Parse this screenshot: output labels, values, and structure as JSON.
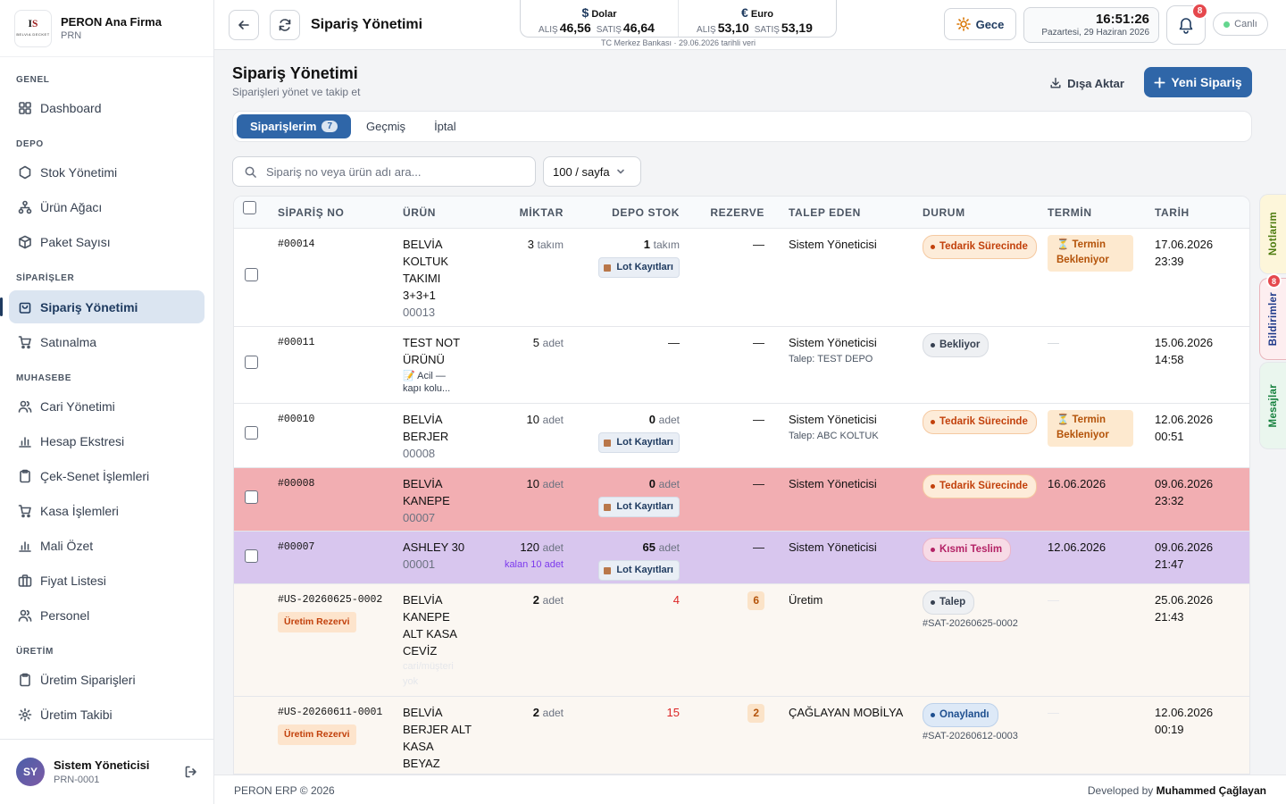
{
  "sidebar": {
    "firm_name": "PERON Ana Firma",
    "firm_code": "PRN",
    "sections": {
      "genel": "GENEL",
      "depo": "DEPO",
      "siparisler": "SİPARİŞLER",
      "muhasebe": "MUHASEBE",
      "uretim": "ÜRETİM"
    },
    "items": {
      "dashboard": "Dashboard",
      "stok": "Stok Yönetimi",
      "urun_agaci": "Ürün Ağacı",
      "paket": "Paket Sayısı",
      "siparis": "Sipariş Yönetimi",
      "satinalma": "Satınalma",
      "cari": "Cari Yönetimi",
      "hesap": "Hesap Ekstresi",
      "cek": "Çek-Senet İşlemleri",
      "kasa": "Kasa İşlemleri",
      "mali": "Mali Özet",
      "fiyat": "Fiyat Listesi",
      "personel": "Personel",
      "uretim_siparis": "Üretim Siparişleri",
      "uretim_takip": "Üretim Takibi"
    },
    "user": {
      "initials": "SY",
      "name": "Sistem Yöneticisi",
      "code": "PRN-0001"
    }
  },
  "topbar": {
    "title": "Sipariş Yönetimi",
    "fx": {
      "usd": {
        "symbol": "$",
        "name": "Dolar",
        "buy_label": "ALIŞ",
        "buy": "46,56",
        "sell_label": "SATIŞ",
        "sell": "46,64"
      },
      "eur": {
        "symbol": "€",
        "name": "Euro",
        "buy_label": "ALIŞ",
        "buy": "53,10",
        "sell_label": "SATIŞ",
        "sell": "53,19"
      },
      "note": "TC Merkez Bankası · 29.06.2026 tarihli veri"
    },
    "night_label": "Gece",
    "time": "16:51:26",
    "date": "Pazartesi, 29 Haziran 2026",
    "notif_count": "8",
    "live_label": "Canlı"
  },
  "page": {
    "title": "Sipariş Yönetimi",
    "subtitle": "Siparişleri yönet ve takip et",
    "export_label": "Dışa Aktar",
    "new_label": "Yeni Sipariş",
    "tabs": [
      {
        "label": "Siparişlerim",
        "count": "7"
      },
      {
        "label": "Geçmiş"
      },
      {
        "label": "İptal"
      }
    ],
    "search_placeholder": "Sipariş no veya ürün adı ara...",
    "page_size": "100 / sayfa"
  },
  "table": {
    "headers": {
      "no": "SİPARİŞ NO",
      "urun": "ÜRÜN",
      "miktar": "MİKTAR",
      "stok": "DEPO STOK",
      "rezerve": "REZERVE",
      "talep": "TALEP EDEN",
      "durum": "DURUM",
      "termin": "TERMİN",
      "tarih": "TARİH"
    },
    "lot_label": "Lot Kayıtları",
    "rows": [
      {
        "no": "#00014",
        "urun_lines": [
          "BELVİA",
          "KOLTUK",
          "TAKIMI",
          "3+3+1"
        ],
        "urun_code": "00013",
        "miktar": "3",
        "miktar_unit": "takım",
        "stok": "1",
        "stok_unit": "takım",
        "rezerve": "—",
        "talep": "Sistem Yöneticisi",
        "durum": "Tedarik Sürecinde",
        "termin_lines": [
          "⏳ Termin",
          "Bekleniyor"
        ],
        "tarih": "17.06.2026",
        "saat": "23:39"
      },
      {
        "no": "#00011",
        "urun_lines": [
          "TEST NOT",
          "ÜRÜNÜ"
        ],
        "note_lines": [
          "📝 Acil —",
          "kapı kolu..."
        ],
        "miktar": "5",
        "miktar_unit": "adet",
        "stok_dash": "—",
        "rezerve": "—",
        "talep": "Sistem Yöneticisi",
        "talep_sub": "Talep: TEST DEPO",
        "durum": "Bekliyor",
        "termin": "—",
        "tarih": "15.06.2026",
        "saat": "14:58"
      },
      {
        "no": "#00010",
        "urun_lines": [
          "BELVİA",
          "BERJER"
        ],
        "urun_code": "00008",
        "miktar": "10",
        "miktar_unit": "adet",
        "stok": "0",
        "stok_unit": "adet",
        "rezerve": "—",
        "talep": "Sistem Yöneticisi",
        "talep_sub": "Talep: ABC KOLTUK",
        "durum": "Tedarik Sürecinde",
        "termin_lines": [
          "⏳ Termin",
          "Bekleniyor"
        ],
        "tarih": "12.06.2026",
        "saat": "00:51"
      },
      {
        "no": "#00008",
        "urun_lines": [
          "BELVİA",
          "KANEPE"
        ],
        "urun_code": "00007",
        "miktar": "10",
        "miktar_unit": "adet",
        "stok": "0",
        "stok_unit": "adet",
        "rezerve": "—",
        "talep": "Sistem Yöneticisi",
        "durum": "Tedarik Sürecinde",
        "termin": "16.06.2026",
        "tarih": "09.06.2026",
        "saat": "23:32"
      },
      {
        "no": "#00007",
        "urun_lines": [
          "ASHLEY 30"
        ],
        "urun_code": "00001",
        "miktar": "120",
        "miktar_unit": "adet",
        "miktar_sub": "kalan 10 adet",
        "stok": "65",
        "stok_unit": "adet",
        "rezerve": "—",
        "talep": "Sistem Yöneticisi",
        "durum": "Kısmi Teslim",
        "termin": "12.06.2026",
        "tarih": "09.06.2026",
        "saat": "21:47"
      },
      {
        "no": "#US-20260625-0002",
        "badge": "Üretim Rezervi",
        "urun_lines": [
          "BELVİA",
          "KANEPE",
          "ALT KASA",
          "CEVİZ"
        ],
        "urun_faint": [
          "cari/müşteri",
          "yok"
        ],
        "miktar": "2",
        "miktar_unit": "adet",
        "stok_red": "4",
        "rezerve_badge": "6",
        "talep": "Üretim",
        "durum": "Talep",
        "durum_sub": "#SAT-20260625-0002",
        "termin": "—",
        "tarih": "25.06.2026",
        "saat": "21:43"
      },
      {
        "no": "#US-20260611-0001",
        "badge": "Üretim Rezervi",
        "urun_lines": [
          "BELVİA",
          "BERJER ALT",
          "KASA",
          "BEYAZ"
        ],
        "miktar": "2",
        "miktar_unit": "adet",
        "stok_red": "15",
        "rezerve_badge": "2",
        "talep": "ÇAĞLAYAN MOBİLYA",
        "durum": "Onaylandı",
        "durum_sub": "#SAT-20260612-0003",
        "termin": "—",
        "tarih": "12.06.2026",
        "saat": "00:19"
      }
    ]
  },
  "side_tabs": {
    "notes": "Notlarım",
    "notifs": "Bildirimler",
    "notif_count": "8",
    "messages": "Mesajlar"
  },
  "footer": {
    "left": "PERON ERP © 2026",
    "right_prefix": "Developed by",
    "right_name": "Muhammed Çağlayan"
  },
  "colors": {
    "primary": "#2f66a8",
    "row_red": "#f2aeb2",
    "row_purple": "#d8c6ee",
    "row_cream": "#fbf7f2",
    "badge_red": "#e5484d"
  }
}
